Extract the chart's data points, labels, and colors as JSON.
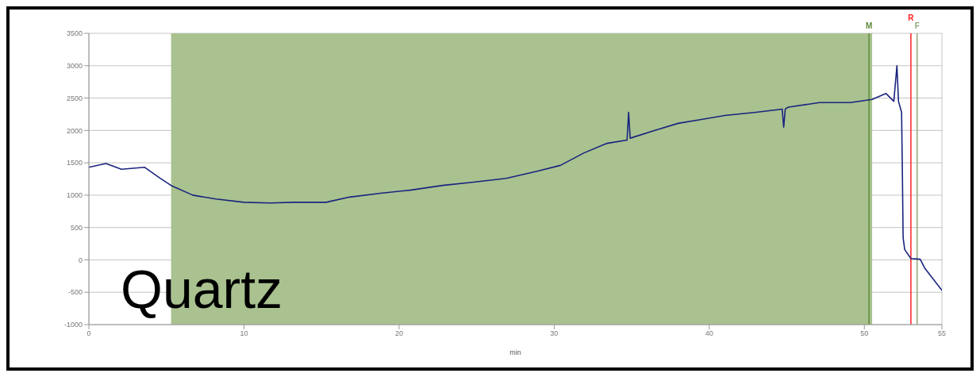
{
  "chart_data": {
    "type": "line",
    "xlabel": "min",
    "x": [
      0,
      1.1,
      2.1,
      3.6,
      4.6,
      5.3,
      6.7,
      8.2,
      10,
      11.7,
      13.2,
      15.3,
      16.8,
      18.8,
      20.8,
      22.8,
      24.8,
      26.9,
      28.9,
      30.4,
      31.9,
      33.4,
      34.7,
      34.8,
      34.9,
      36.5,
      38,
      39.5,
      41,
      43,
      44.7,
      44.8,
      44.9,
      45.1,
      47.1,
      49.1,
      50.5,
      51.4,
      51.9,
      52.1,
      52.2,
      52.4,
      52.45,
      52.5,
      52.6,
      53,
      53.6,
      53.9,
      55
    ],
    "series": [
      {
        "color": "#1a237e",
        "values": [
          1430,
          1490,
          1400,
          1430,
          1260,
          1150,
          1000,
          940,
          890,
          880,
          890,
          890,
          970,
          1030,
          1080,
          1150,
          1200,
          1260,
          1370,
          1460,
          1650,
          1800,
          1850,
          2280,
          1880,
          2000,
          2110,
          2170,
          2230,
          2280,
          2330,
          2050,
          2330,
          2360,
          2430,
          2430,
          2480,
          2570,
          2450,
          3000,
          2450,
          2280,
          1380,
          340,
          160,
          20,
          10,
          -130,
          -470
        ]
      }
    ],
    "xlim": [
      0,
      55
    ],
    "xticks": [
      0,
      10,
      20,
      30,
      40,
      50,
      55
    ],
    "ylim": [
      -1000,
      3500
    ],
    "yticks": [
      -1000,
      -500,
      0,
      500,
      1000,
      1500,
      2000,
      2500,
      3000,
      3500
    ],
    "grid": true,
    "marker": "none",
    "line_style": "solid",
    "bands": [
      {
        "axis": "x",
        "from": 5.3,
        "to": 50.5,
        "color": "#a9c290"
      }
    ],
    "ref_lines": [
      {
        "axis": "x",
        "value": 50.3,
        "label": "M",
        "color": "#5c8a3a"
      },
      {
        "axis": "x",
        "value": 53,
        "label": "R",
        "color": "#ff2020"
      },
      {
        "axis": "x",
        "value": 53.4,
        "label": "F",
        "color": "#8fa878"
      }
    ],
    "annotations": [
      "Quartz"
    ]
  }
}
